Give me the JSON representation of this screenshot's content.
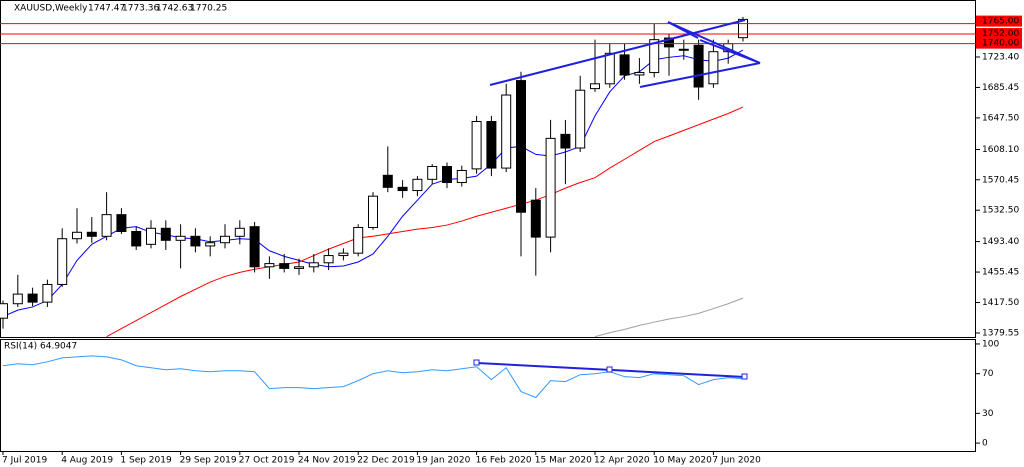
{
  "chart_data": [
    {
      "type": "candlestick",
      "title": "XAUUSD,Weekly",
      "categories": [
        "7 Jul 2019",
        null,
        null,
        null,
        "4 Aug 2019",
        null,
        null,
        null,
        "1 Sep 2019",
        null,
        null,
        null,
        "29 Sep 2019",
        null,
        null,
        null,
        "27 Oct 2019",
        null,
        null,
        null,
        "24 Nov 2019",
        null,
        null,
        null,
        "22 Dec 2019",
        null,
        null,
        null,
        "19 Jan 2020",
        null,
        null,
        null,
        "16 Feb 2020",
        null,
        null,
        null,
        "15 Mar 2020",
        null,
        null,
        null,
        "12 Apr 2020",
        null,
        null,
        null,
        "10 May 2020",
        null,
        null,
        null,
        "7 Jun 2020",
        null,
        null
      ],
      "open": [
        1398,
        1416,
        1428,
        1418,
        1440,
        1497,
        1505,
        1500,
        1527,
        1506,
        1490,
        1510,
        1495,
        1500,
        1488,
        1492,
        1500,
        1512,
        1462,
        1466,
        1460,
        1462,
        1467,
        1476,
        1479,
        1511,
        1576,
        1561,
        1557,
        1571,
        1587,
        1567,
        1584,
        1643,
        1585,
        1694,
        1545,
        1499,
        1627,
        1610,
        1684,
        1690,
        1726,
        1701,
        1704,
        1747,
        1732,
        1738,
        1690,
        1730,
        1747.47
      ],
      "high": [
        1420,
        1452,
        1436,
        1446,
        1510,
        1535,
        1524,
        1555,
        1535,
        1512,
        1520,
        1520,
        1515,
        1510,
        1500,
        1515,
        1520,
        1518,
        1475,
        1478,
        1472,
        1478,
        1485,
        1485,
        1515,
        1555,
        1612,
        1570,
        1575,
        1590,
        1592,
        1588,
        1650,
        1650,
        1690,
        1705,
        1560,
        1645,
        1645,
        1700,
        1745,
        1740,
        1740,
        1722,
        1765,
        1752,
        1745,
        1745,
        1745,
        1745,
        1773.36
      ],
      "low": [
        1385,
        1412,
        1413,
        1412,
        1437,
        1491,
        1492,
        1495,
        1503,
        1483,
        1485,
        1483,
        1460,
        1480,
        1475,
        1485,
        1490,
        1455,
        1447,
        1455,
        1452,
        1455,
        1458,
        1470,
        1475,
        1508,
        1555,
        1548,
        1550,
        1565,
        1560,
        1562,
        1578,
        1575,
        1580,
        1475,
        1451,
        1480,
        1565,
        1605,
        1680,
        1685,
        1695,
        1690,
        1698,
        1700,
        1720,
        1670,
        1685,
        1715,
        1742.63
      ],
      "close": [
        1416,
        1428,
        1418,
        1440,
        1497,
        1505,
        1500,
        1527,
        1506,
        1488,
        1510,
        1495,
        1500,
        1488,
        1492,
        1500,
        1510,
        1462,
        1466,
        1460,
        1462,
        1467,
        1476,
        1479,
        1511,
        1550,
        1561,
        1557,
        1571,
        1587,
        1567,
        1582,
        1643,
        1585,
        1676,
        1530,
        1499,
        1622,
        1610,
        1682,
        1690,
        1728,
        1701,
        1704,
        1745,
        1736,
        1733,
        1686,
        1730,
        1740,
        1770.25
      ],
      "lines": [
        {
          "color": "#0000ff",
          "values": [
            1400,
            1408,
            1412,
            1420,
            1440,
            1470,
            1490,
            1500,
            1510,
            1512,
            1505,
            1502,
            1498,
            1497,
            1493,
            1495,
            1497,
            1496,
            1482,
            1475,
            1470,
            1465,
            1462,
            1463,
            1468,
            1478,
            1500,
            1525,
            1545,
            1565,
            1571,
            1572,
            1575,
            1590,
            1610,
            1612,
            1602,
            1600,
            1605,
            1612,
            1650,
            1680,
            1700,
            1705,
            1720,
            1723,
            1725,
            1720,
            1718,
            1722,
            1732
          ]
        },
        {
          "color": "#ff0000",
          "values": [
            null,
            null,
            null,
            null,
            null,
            null,
            null,
            1375,
            1385,
            1395,
            1405,
            1415,
            1425,
            1434,
            1443,
            1450,
            1455,
            1459,
            1462,
            1465,
            1468,
            1476,
            1484,
            1491,
            1498,
            1500,
            1503,
            1506,
            1509,
            1511,
            1514,
            1519,
            1525,
            1530,
            1535,
            1540,
            1545,
            1552,
            1560,
            1567,
            1573,
            1585,
            1596,
            1607,
            1618,
            1625,
            1632,
            1639,
            1646,
            1653,
            1661
          ]
        },
        {
          "color": "#a0a0a0",
          "values": [
            null,
            null,
            null,
            null,
            null,
            null,
            null,
            null,
            null,
            null,
            null,
            null,
            null,
            null,
            null,
            null,
            null,
            null,
            null,
            null,
            null,
            null,
            null,
            null,
            null,
            null,
            null,
            null,
            null,
            null,
            null,
            null,
            null,
            null,
            null,
            null,
            null,
            null,
            null,
            null,
            1375,
            1380,
            1384,
            1389,
            1393,
            1397,
            1400,
            1404,
            1410,
            1416,
            1423
          ]
        }
      ],
      "levels": [
        {
          "value": 1765,
          "label": "1765.00"
        },
        {
          "value": 1752,
          "label": "1752.00"
        },
        {
          "value": 1740,
          "label": "1740.00"
        }
      ],
      "level_color": "#ff0000",
      "ylim": [
        1373.3,
        1794.4
      ],
      "yticks": [
        {
          "value": 1723.4,
          "label": "1723.40"
        },
        {
          "value": 1685.45,
          "label": "1685.45"
        },
        {
          "value": 1647.5,
          "label": "1647.50"
        },
        {
          "value": 1608.1,
          "label": "1608.10"
        },
        {
          "value": 1570.45,
          "label": "1570.45"
        },
        {
          "value": 1532.5,
          "label": "1532.50"
        },
        {
          "value": 1493.4,
          "label": "1493.40"
        },
        {
          "value": 1455.45,
          "label": "1455.45"
        },
        {
          "value": 1417.5,
          "label": "1417.50"
        },
        {
          "value": 1379.55,
          "label": "1379.55"
        }
      ]
    },
    {
      "type": "line",
      "title": "RSI(14)",
      "color": "#3399ff",
      "values": [
        78,
        80,
        79,
        82,
        86,
        87,
        88,
        87,
        84,
        78,
        76,
        74,
        75,
        73,
        72,
        73,
        73,
        72,
        55,
        56,
        56,
        55,
        56,
        57,
        63,
        70,
        73,
        71,
        72,
        74,
        73,
        75,
        77,
        64,
        76,
        52,
        46,
        63,
        62,
        69,
        70,
        72,
        67,
        66,
        70,
        69,
        68,
        59,
        64,
        66,
        64.9047
      ],
      "ylim": [
        -9,
        104
      ],
      "yticks": [
        0,
        30,
        70,
        100
      ]
    }
  ]
}
